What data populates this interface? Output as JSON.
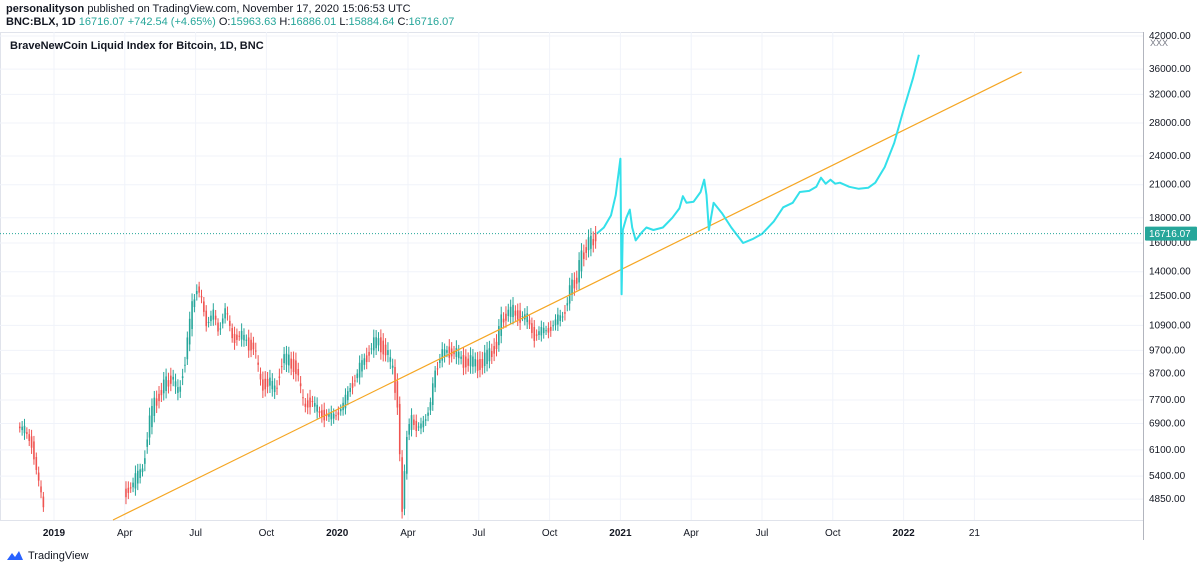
{
  "header": {
    "author": "personalityson",
    "published_text": "published on TradingView.com, November 17, 2020 15:06:53 UTC",
    "symbol": "BNC:BLX, 1D",
    "last": "16716.07",
    "change": "+742.54 (+4.65%)",
    "open_label": "O:",
    "open": "15963.63",
    "high_label": "H:",
    "high": "16886.01",
    "low_label": "L:",
    "low": "15884.64",
    "close_label": "C:",
    "close": "16716.07"
  },
  "footer": {
    "brand": "TradingView"
  },
  "extra_label": "XXX",
  "colors": {
    "up": "#26a69a",
    "down": "#ef5350",
    "trend": "#f5a623",
    "projection": "#33e0ea",
    "price_tag": "#26a69a",
    "grid": "#f0f3fa"
  },
  "chart_data": {
    "type": "candlestick",
    "title": "BraveNewCoin Liquid Index for Bitcoin, 1D, BNC",
    "yscale": "log",
    "ylim": [
      4400,
      42000
    ],
    "y_ticks": [
      "42000.00",
      "36000.00",
      "32000.00",
      "28000.00",
      "24000.00",
      "21000.00",
      "18000.00",
      "16000.00",
      "14000.00",
      "12500.00",
      "10900.00",
      "9700.00",
      "8700.00",
      "7700.00",
      "6900.00",
      "6100.00",
      "5400.00",
      "4850.00"
    ],
    "x_ticks": [
      {
        "label": "2019",
        "t": 0,
        "bold": true
      },
      {
        "label": "Apr",
        "t": 3
      },
      {
        "label": "Jul",
        "t": 6
      },
      {
        "label": "Oct",
        "t": 9
      },
      {
        "label": "2020",
        "t": 12,
        "bold": true
      },
      {
        "label": "Apr",
        "t": 15
      },
      {
        "label": "Jul",
        "t": 18
      },
      {
        "label": "Oct",
        "t": 21
      },
      {
        "label": "2021",
        "t": 24,
        "bold": true
      },
      {
        "label": "Apr",
        "t": 27
      },
      {
        "label": "Jul",
        "t": 30
      },
      {
        "label": "Oct",
        "t": 33
      },
      {
        "label": "2022",
        "t": 36,
        "bold": true
      },
      {
        "label": "21",
        "t": 39
      }
    ],
    "current_price": 16716.07,
    "current_price_label": "16716.07",
    "price_series": [
      [
        -1.5,
        6800
      ],
      [
        -1.2,
        6650
      ],
      [
        -0.9,
        6300
      ],
      [
        -0.6,
        5200
      ],
      [
        -0.3,
        4400
      ],
      [
        2.9,
        4400
      ],
      [
        3.0,
        5000
      ],
      [
        3.4,
        5200
      ],
      [
        3.8,
        5600
      ],
      [
        4.0,
        6600
      ],
      [
        4.3,
        7600
      ],
      [
        4.6,
        8100
      ],
      [
        4.8,
        8300
      ],
      [
        5.0,
        8600
      ],
      [
        5.3,
        7900
      ],
      [
        5.6,
        9400
      ],
      [
        5.9,
        11800
      ],
      [
        6.1,
        13100
      ],
      [
        6.3,
        12200
      ],
      [
        6.5,
        11000
      ],
      [
        6.8,
        11500
      ],
      [
        7.0,
        10600
      ],
      [
        7.3,
        11700
      ],
      [
        7.6,
        10300
      ],
      [
        7.9,
        10400
      ],
      [
        8.2,
        10100
      ],
      [
        8.5,
        9900
      ],
      [
        8.8,
        8300
      ],
      [
        9.1,
        8400
      ],
      [
        9.4,
        8000
      ],
      [
        9.7,
        9300
      ],
      [
        10.0,
        9200
      ],
      [
        10.3,
        9000
      ],
      [
        10.6,
        7500
      ],
      [
        10.9,
        7700
      ],
      [
        11.2,
        7300
      ],
      [
        11.5,
        7200
      ],
      [
        11.8,
        7100
      ],
      [
        12.0,
        7200
      ],
      [
        12.3,
        7500
      ],
      [
        12.6,
        8200
      ],
      [
        12.9,
        8700
      ],
      [
        13.2,
        9300
      ],
      [
        13.5,
        9900
      ],
      [
        13.8,
        10100
      ],
      [
        14.1,
        9700
      ],
      [
        14.4,
        8800
      ],
      [
        14.6,
        7700
      ],
      [
        14.7,
        5800
      ],
      [
        14.8,
        4700
      ],
      [
        14.9,
        5400
      ],
      [
        15.0,
        6600
      ],
      [
        15.2,
        7000
      ],
      [
        15.4,
        6800
      ],
      [
        15.6,
        6800
      ],
      [
        15.8,
        7100
      ],
      [
        16.0,
        7600
      ],
      [
        16.2,
        8800
      ],
      [
        16.4,
        9400
      ],
      [
        16.7,
        9700
      ],
      [
        17.0,
        9600
      ],
      [
        17.3,
        9300
      ],
      [
        17.6,
        9200
      ],
      [
        17.9,
        9100
      ],
      [
        18.2,
        9200
      ],
      [
        18.5,
        9500
      ],
      [
        18.8,
        10100
      ],
      [
        19.0,
        11100
      ],
      [
        19.2,
        11500
      ],
      [
        19.5,
        11600
      ],
      [
        19.8,
        11400
      ],
      [
        20.1,
        11200
      ],
      [
        20.4,
        10400
      ],
      [
        20.7,
        10600
      ],
      [
        21.0,
        10700
      ],
      [
        21.3,
        11100
      ],
      [
        21.6,
        11400
      ],
      [
        21.8,
        12300
      ],
      [
        22.0,
        13200
      ],
      [
        22.2,
        13600
      ],
      [
        22.4,
        15000
      ],
      [
        22.6,
        15800
      ],
      [
        22.8,
        16000
      ],
      [
        23.0,
        16716
      ]
    ],
    "projection": [
      [
        23.0,
        16716
      ],
      [
        23.3,
        17200
      ],
      [
        23.6,
        18200
      ],
      [
        23.8,
        20000
      ],
      [
        24.0,
        23700
      ],
      [
        24.05,
        12600
      ],
      [
        24.1,
        17000
      ],
      [
        24.25,
        18000
      ],
      [
        24.4,
        18700
      ],
      [
        24.5,
        17200
      ],
      [
        24.65,
        16200
      ],
      [
        24.9,
        16800
      ],
      [
        25.1,
        17200
      ],
      [
        25.4,
        17000
      ],
      [
        25.8,
        17200
      ],
      [
        26.2,
        18000
      ],
      [
        26.5,
        18800
      ],
      [
        26.65,
        19900
      ],
      [
        26.8,
        19300
      ],
      [
        27.1,
        19400
      ],
      [
        27.4,
        20300
      ],
      [
        27.55,
        21500
      ],
      [
        27.65,
        20000
      ],
      [
        27.75,
        17000
      ],
      [
        27.95,
        19300
      ],
      [
        28.3,
        18400
      ],
      [
        28.7,
        17200
      ],
      [
        29.2,
        16000
      ],
      [
        29.6,
        16300
      ],
      [
        30.0,
        16700
      ],
      [
        30.5,
        17700
      ],
      [
        30.9,
        18900
      ],
      [
        31.3,
        19300
      ],
      [
        31.6,
        20300
      ],
      [
        32.0,
        20400
      ],
      [
        32.3,
        20800
      ],
      [
        32.5,
        21700
      ],
      [
        32.7,
        21100
      ],
      [
        32.9,
        21500
      ],
      [
        33.1,
        21100
      ],
      [
        33.3,
        21200
      ],
      [
        33.7,
        20800
      ],
      [
        34.1,
        20600
      ],
      [
        34.5,
        20700
      ],
      [
        34.8,
        21200
      ],
      [
        35.2,
        22800
      ],
      [
        35.6,
        25500
      ],
      [
        36.0,
        29800
      ],
      [
        36.4,
        34500
      ],
      [
        36.65,
        38500
      ]
    ],
    "trendline": [
      [
        2.5,
        4400
      ],
      [
        41.0,
        35500
      ]
    ]
  }
}
